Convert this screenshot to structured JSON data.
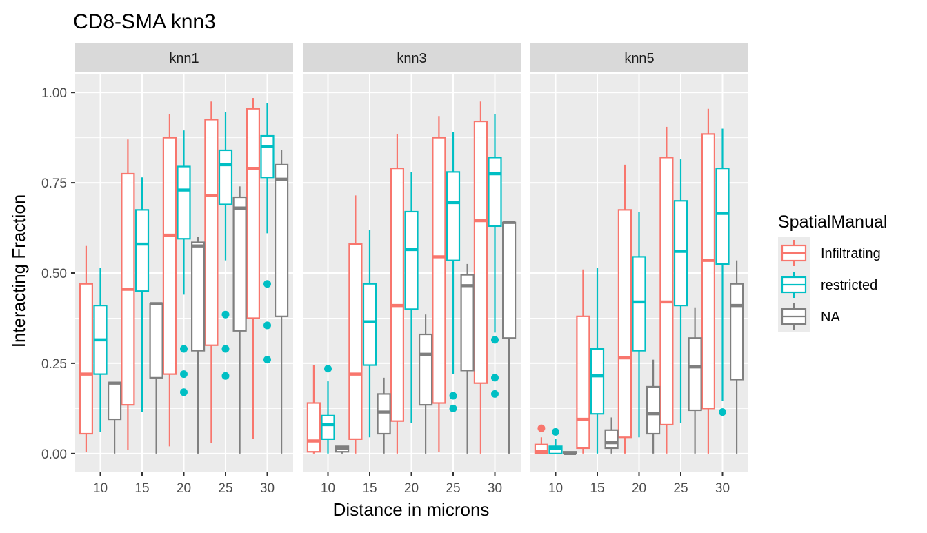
{
  "chart_data": {
    "type": "box",
    "title": "CD8-SMA knn3",
    "xlabel": "Distance in microns",
    "ylabel": "Interacting Fraction",
    "ylim": [
      -0.05,
      1.05
    ],
    "y_ticks": [
      0,
      0.25,
      0.5,
      0.75,
      1.0
    ],
    "y_tick_labels": [
      "0.00",
      "0.25",
      "0.50",
      "0.75",
      "1.00"
    ],
    "categories": [
      "10",
      "15",
      "20",
      "25",
      "30"
    ],
    "grid": true,
    "legend": {
      "title": "SpatialManual",
      "position": "right",
      "entries": [
        {
          "name": "Infiltrating",
          "color": "#F8766D"
        },
        {
          "name": "restricted",
          "color": "#00BFC4"
        },
        {
          "name": "NA",
          "color": "#7F7F7F"
        }
      ]
    },
    "facets": [
      {
        "label": "knn1",
        "boxes": {
          "Infiltrating": [
            {
              "min": 0.005,
              "q1": 0.055,
              "median": 0.22,
              "q3": 0.47,
              "max": 0.575,
              "outliers": []
            },
            {
              "min": 0.01,
              "q1": 0.135,
              "median": 0.455,
              "q3": 0.775,
              "max": 0.87,
              "outliers": []
            },
            {
              "min": 0.02,
              "q1": 0.22,
              "median": 0.605,
              "q3": 0.875,
              "max": 0.94,
              "outliers": []
            },
            {
              "min": 0.03,
              "q1": 0.3,
              "median": 0.715,
              "q3": 0.925,
              "max": 0.975,
              "outliers": []
            },
            {
              "min": 0.04,
              "q1": 0.375,
              "median": 0.79,
              "q3": 0.955,
              "max": 0.985,
              "outliers": []
            }
          ],
          "restricted": [
            {
              "min": 0.06,
              "q1": 0.22,
              "median": 0.315,
              "q3": 0.41,
              "max": 0.515,
              "outliers": []
            },
            {
              "min": 0.115,
              "q1": 0.45,
              "median": 0.58,
              "q3": 0.675,
              "max": 0.765,
              "outliers": []
            },
            {
              "min": 0.44,
              "q1": 0.595,
              "median": 0.73,
              "q3": 0.795,
              "max": 0.895,
              "outliers": [
                0.29,
                0.22,
                0.17
              ]
            },
            {
              "min": 0.535,
              "q1": 0.69,
              "median": 0.8,
              "q3": 0.84,
              "max": 0.945,
              "outliers": [
                0.385,
                0.29,
                0.215
              ]
            },
            {
              "min": 0.61,
              "q1": 0.765,
              "median": 0.85,
              "q3": 0.88,
              "max": 0.97,
              "outliers": [
                0.47,
                0.355,
                0.26
              ]
            }
          ],
          "NA": [
            {
              "min": 0.0,
              "q1": 0.095,
              "median": 0.195,
              "q3": 0.195,
              "max": 0.195,
              "outliers": []
            },
            {
              "min": 0.0,
              "q1": 0.21,
              "median": 0.415,
              "q3": 0.415,
              "max": 0.415,
              "outliers": []
            },
            {
              "min": 0.0,
              "q1": 0.285,
              "median": 0.575,
              "q3": 0.585,
              "max": 0.6,
              "outliers": []
            },
            {
              "min": 0.0,
              "q1": 0.34,
              "median": 0.68,
              "q3": 0.71,
              "max": 0.74,
              "outliers": []
            },
            {
              "min": 0.0,
              "q1": 0.38,
              "median": 0.76,
              "q3": 0.8,
              "max": 0.84,
              "outliers": []
            }
          ]
        }
      },
      {
        "label": "knn3",
        "boxes": {
          "Infiltrating": [
            {
              "min": 0.0,
              "q1": 0.005,
              "median": 0.035,
              "q3": 0.14,
              "max": 0.245,
              "outliers": []
            },
            {
              "min": 0.0,
              "q1": 0.04,
              "median": 0.22,
              "q3": 0.58,
              "max": 0.715,
              "outliers": []
            },
            {
              "min": 0.0,
              "q1": 0.09,
              "median": 0.41,
              "q3": 0.79,
              "max": 0.885,
              "outliers": []
            },
            {
              "min": 0.005,
              "q1": 0.14,
              "median": 0.545,
              "q3": 0.875,
              "max": 0.935,
              "outliers": []
            },
            {
              "min": 0.0,
              "q1": 0.195,
              "median": 0.645,
              "q3": 0.92,
              "max": 0.975,
              "outliers": []
            }
          ],
          "restricted": [
            {
              "min": 0.0,
              "q1": 0.04,
              "median": 0.08,
              "q3": 0.105,
              "max": 0.2,
              "outliers": [
                0.235
              ]
            },
            {
              "min": 0.045,
              "q1": 0.245,
              "median": 0.365,
              "q3": 0.47,
              "max": 0.62,
              "outliers": []
            },
            {
              "min": 0.085,
              "q1": 0.4,
              "median": 0.565,
              "q3": 0.67,
              "max": 0.78,
              "outliers": []
            },
            {
              "min": 0.22,
              "q1": 0.535,
              "median": 0.695,
              "q3": 0.78,
              "max": 0.89,
              "outliers": [
                0.16,
                0.125
              ]
            },
            {
              "min": 0.335,
              "q1": 0.63,
              "median": 0.775,
              "q3": 0.82,
              "max": 0.94,
              "outliers": [
                0.315,
                0.21,
                0.165
              ]
            }
          ],
          "NA": [
            {
              "min": 0.0,
              "q1": 0.005,
              "median": 0.015,
              "q3": 0.02,
              "max": 0.02,
              "outliers": []
            },
            {
              "min": 0.0,
              "q1": 0.055,
              "median": 0.115,
              "q3": 0.165,
              "max": 0.21,
              "outliers": []
            },
            {
              "min": 0.0,
              "q1": 0.135,
              "median": 0.275,
              "q3": 0.33,
              "max": 0.385,
              "outliers": []
            },
            {
              "min": 0.0,
              "q1": 0.23,
              "median": 0.465,
              "q3": 0.495,
              "max": 0.525,
              "outliers": []
            },
            {
              "min": 0.0,
              "q1": 0.32,
              "median": 0.64,
              "q3": 0.64,
              "max": 0.64,
              "outliers": []
            }
          ]
        }
      },
      {
        "label": "knn5",
        "boxes": {
          "Infiltrating": [
            {
              "min": 0.0,
              "q1": 0.0,
              "median": 0.005,
              "q3": 0.025,
              "max": 0.045,
              "outliers": [
                0.07
              ]
            },
            {
              "min": 0.0,
              "q1": 0.015,
              "median": 0.095,
              "q3": 0.38,
              "max": 0.51,
              "outliers": []
            },
            {
              "min": 0.0,
              "q1": 0.045,
              "median": 0.265,
              "q3": 0.675,
              "max": 0.8,
              "outliers": []
            },
            {
              "min": 0.0,
              "q1": 0.08,
              "median": 0.42,
              "q3": 0.82,
              "max": 0.905,
              "outliers": []
            },
            {
              "min": 0.0,
              "q1": 0.125,
              "median": 0.535,
              "q3": 0.885,
              "max": 0.955,
              "outliers": []
            }
          ],
          "restricted": [
            {
              "min": 0.0,
              "q1": 0.0,
              "median": 0.015,
              "q3": 0.02,
              "max": 0.04,
              "outliers": [
                0.06
              ]
            },
            {
              "min": 0.0,
              "q1": 0.11,
              "median": 0.215,
              "q3": 0.29,
              "max": 0.515,
              "outliers": []
            },
            {
              "min": 0.045,
              "q1": 0.285,
              "median": 0.42,
              "q3": 0.545,
              "max": 0.67,
              "outliers": []
            },
            {
              "min": 0.085,
              "q1": 0.41,
              "median": 0.56,
              "q3": 0.7,
              "max": 0.815,
              "outliers": []
            },
            {
              "min": 0.145,
              "q1": 0.525,
              "median": 0.665,
              "q3": 0.79,
              "max": 0.9,
              "outliers": [
                0.115
              ]
            }
          ],
          "NA": [
            {
              "min": 0.0,
              "q1": 0.0,
              "median": 0.0,
              "q3": 0.005,
              "max": 0.005,
              "outliers": []
            },
            {
              "min": 0.0,
              "q1": 0.015,
              "median": 0.03,
              "q3": 0.065,
              "max": 0.1,
              "outliers": []
            },
            {
              "min": 0.0,
              "q1": 0.055,
              "median": 0.11,
              "q3": 0.185,
              "max": 0.26,
              "outliers": []
            },
            {
              "min": 0.0,
              "q1": 0.12,
              "median": 0.24,
              "q3": 0.32,
              "max": 0.405,
              "outliers": []
            },
            {
              "min": 0.0,
              "q1": 0.205,
              "median": 0.41,
              "q3": 0.47,
              "max": 0.535,
              "outliers": []
            }
          ]
        }
      }
    ]
  }
}
